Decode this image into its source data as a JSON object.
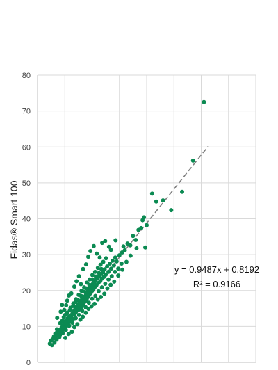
{
  "chart_data": {
    "type": "scatter",
    "title": "",
    "xlabel": "",
    "ylabel": "Fidas® Smart 100",
    "xlim": [
      0,
      80
    ],
    "ylim": [
      0,
      80
    ],
    "y_ticks": [
      0,
      10,
      20,
      30,
      40,
      50,
      60,
      70,
      80
    ],
    "x_grid": [
      0,
      10,
      20,
      30,
      40,
      50,
      60,
      70,
      80
    ],
    "grid": true,
    "point_color": "#0b8a52",
    "trendline_color": "#7f7f7f",
    "trendline": {
      "slope": 0.9487,
      "intercept": 0.8192,
      "x_range": [
        4.5,
        62.5
      ],
      "style": "dashed"
    },
    "annotations": {
      "equation": "y = 0.9487x + 0.8192",
      "r2": "R² = 0.9166"
    },
    "series": [
      {
        "points": [
          [
            4.5,
            5.2
          ],
          [
            5.0,
            6.1
          ],
          [
            5.3,
            4.8
          ],
          [
            5.8,
            6.6
          ],
          [
            6.0,
            7.2
          ],
          [
            6.2,
            5.5
          ],
          [
            6.5,
            6.9
          ],
          [
            6.8,
            7.8
          ],
          [
            7.0,
            6.3
          ],
          [
            7.2,
            8.5
          ],
          [
            7.5,
            7.4
          ],
          [
            7.8,
            8.1
          ],
          [
            8.0,
            9.0
          ],
          [
            8.2,
            7.6
          ],
          [
            8.5,
            8.8
          ],
          [
            8.8,
            9.6
          ],
          [
            9.0,
            8.3
          ],
          [
            9.2,
            10.2
          ],
          [
            9.5,
            9.4
          ],
          [
            9.8,
            10.8
          ],
          [
            10.0,
            9.1
          ],
          [
            10.2,
            11.5
          ],
          [
            10.5,
            10.1
          ],
          [
            10.8,
            11.0
          ],
          [
            11.0,
            12.2
          ],
          [
            11.2,
            10.6
          ],
          [
            11.5,
            11.9
          ],
          [
            11.8,
            12.8
          ],
          [
            12.0,
            11.3
          ],
          [
            12.2,
            13.1
          ],
          [
            12.5,
            12.4
          ],
          [
            12.8,
            13.6
          ],
          [
            13.0,
            12.0
          ],
          [
            13.2,
            14.2
          ],
          [
            13.5,
            13.3
          ],
          [
            13.8,
            14.8
          ],
          [
            14.0,
            13.9
          ],
          [
            14.2,
            15.5
          ],
          [
            14.5,
            14.4
          ],
          [
            14.8,
            15.1
          ],
          [
            15.0,
            16.2
          ],
          [
            15.2,
            14.7
          ],
          [
            15.5,
            15.8
          ],
          [
            15.8,
            16.7
          ],
          [
            16.0,
            15.3
          ],
          [
            16.2,
            17.4
          ],
          [
            16.5,
            16.0
          ],
          [
            16.8,
            17.9
          ],
          [
            17.0,
            16.6
          ],
          [
            17.2,
            18.3
          ],
          [
            17.5,
            17.1
          ],
          [
            17.8,
            18.9
          ],
          [
            18.0,
            17.5
          ],
          [
            18.2,
            19.6
          ],
          [
            18.5,
            18.2
          ],
          [
            18.8,
            20.1
          ],
          [
            19.0,
            18.8
          ],
          [
            19.2,
            20.8
          ],
          [
            19.5,
            19.3
          ],
          [
            19.8,
            21.2
          ],
          [
            20.0,
            19.9
          ],
          [
            20.2,
            21.8
          ],
          [
            20.5,
            20.4
          ],
          [
            20.8,
            22.3
          ],
          [
            21.0,
            21.0
          ],
          [
            21.3,
            22.9
          ],
          [
            21.6,
            21.5
          ],
          [
            22.0,
            23.4
          ],
          [
            22.3,
            22.1
          ],
          [
            22.6,
            24.0
          ],
          [
            23.0,
            22.6
          ],
          [
            23.3,
            24.6
          ],
          [
            23.6,
            23.3
          ],
          [
            24.0,
            25.1
          ],
          [
            24.3,
            23.8
          ],
          [
            24.6,
            25.9
          ],
          [
            25.0,
            24.4
          ],
          [
            25.5,
            26.7
          ],
          [
            26.0,
            25.2
          ],
          [
            26.5,
            27.5
          ],
          [
            27.0,
            26.1
          ],
          [
            27.5,
            28.3
          ],
          [
            28.0,
            27.0
          ],
          [
            28.5,
            29.2
          ],
          [
            29.0,
            28.1
          ],
          [
            30.0,
            29.8
          ],
          [
            31.0,
            30.6
          ],
          [
            31.5,
            32.3
          ],
          [
            32.0,
            31.2
          ],
          [
            33.0,
            33.1
          ],
          [
            34.0,
            32.6
          ],
          [
            35.0,
            35.2
          ],
          [
            36.0,
            34.1
          ],
          [
            37.0,
            36.9
          ],
          [
            38.0,
            37.4
          ],
          [
            38.5,
            39.6
          ],
          [
            39.0,
            40.4
          ],
          [
            40.0,
            38.2
          ],
          [
            7.2,
            12.4
          ],
          [
            8.5,
            14.1
          ],
          [
            9.0,
            16.0
          ],
          [
            9.8,
            14.6
          ],
          [
            10.5,
            15.9
          ],
          [
            10.9,
            17.2
          ],
          [
            11.5,
            18.6
          ],
          [
            12.4,
            19.2
          ],
          [
            13.5,
            21.1
          ],
          [
            14.3,
            22.6
          ],
          [
            15.2,
            24.0
          ],
          [
            15.9,
            21.8
          ],
          [
            16.7,
            26.0
          ],
          [
            17.8,
            27.3
          ],
          [
            18.6,
            29.4
          ],
          [
            19.4,
            31.0
          ],
          [
            20.6,
            32.4
          ],
          [
            21.7,
            30.3
          ],
          [
            22.8,
            29.2
          ],
          [
            23.7,
            33.3
          ],
          [
            24.8,
            33.8
          ],
          [
            26.2,
            32.2
          ],
          [
            26.9,
            31.3
          ],
          [
            28.6,
            34.0
          ],
          [
            10.2,
            6.8
          ],
          [
            11.4,
            7.9
          ],
          [
            12.6,
            8.5
          ],
          [
            13.5,
            9.8
          ],
          [
            14.6,
            10.6
          ],
          [
            15.7,
            11.9
          ],
          [
            16.6,
            12.7
          ],
          [
            17.7,
            13.8
          ],
          [
            18.7,
            14.9
          ],
          [
            19.8,
            15.6
          ],
          [
            20.9,
            16.3
          ],
          [
            22.1,
            17.5
          ],
          [
            23.2,
            18.2
          ],
          [
            24.5,
            19.1
          ],
          [
            25.6,
            20.6
          ],
          [
            26.8,
            21.6
          ],
          [
            28.1,
            22.5
          ],
          [
            29.6,
            24.2
          ],
          [
            31.1,
            25.8
          ],
          [
            32.6,
            28.0
          ],
          [
            34.1,
            29.7
          ],
          [
            36.3,
            31.8
          ],
          [
            39.5,
            32.0
          ],
          [
            6.5,
            8.0
          ],
          [
            7.1,
            9.2
          ],
          [
            8.3,
            10.9
          ],
          [
            9.1,
            11.6
          ],
          [
            10.1,
            13.2
          ],
          [
            11.0,
            13.9
          ],
          [
            12.1,
            15.2
          ],
          [
            13.1,
            16.4
          ],
          [
            14.1,
            17.6
          ],
          [
            15.1,
            18.8
          ],
          [
            16.1,
            19.9
          ],
          [
            17.1,
            20.9
          ],
          [
            18.1,
            22.2
          ],
          [
            19.1,
            23.1
          ],
          [
            20.1,
            24.3
          ],
          [
            21.1,
            25.2
          ],
          [
            22.1,
            26.3
          ],
          [
            23.1,
            27.2
          ],
          [
            24.1,
            28.0
          ],
          [
            25.1,
            29.0
          ],
          [
            8.0,
            7.0
          ],
          [
            9.2,
            8.1
          ],
          [
            10.4,
            9.0
          ],
          [
            11.6,
            10.2
          ],
          [
            12.8,
            11.0
          ],
          [
            14.0,
            12.3
          ],
          [
            15.2,
            13.2
          ],
          [
            16.4,
            14.3
          ],
          [
            17.6,
            15.4
          ],
          [
            18.8,
            16.6
          ],
          [
            20.0,
            17.7
          ],
          [
            21.2,
            18.5
          ],
          [
            22.4,
            19.8
          ],
          [
            23.6,
            20.9
          ],
          [
            24.8,
            21.9
          ],
          [
            26.0,
            23.1
          ],
          [
            27.2,
            24.0
          ],
          [
            28.4,
            25.2
          ],
          [
            29.6,
            26.1
          ],
          [
            30.8,
            27.5
          ],
          [
            9.6,
            12.6
          ],
          [
            10.7,
            13.5
          ],
          [
            11.9,
            14.6
          ],
          [
            13.0,
            15.7
          ],
          [
            13.9,
            16.8
          ],
          [
            14.9,
            17.3
          ],
          [
            16.0,
            18.5
          ],
          [
            17.0,
            19.7
          ],
          [
            18.0,
            20.6
          ],
          [
            19.0,
            21.6
          ],
          [
            20.3,
            23.0
          ],
          [
            21.4,
            23.9
          ],
          [
            22.5,
            24.9
          ],
          [
            23.4,
            26.0
          ],
          [
            42.0,
            47.0
          ],
          [
            43.5,
            44.8
          ],
          [
            46.0,
            45.1
          ],
          [
            49.0,
            42.4
          ],
          [
            53.0,
            47.5
          ],
          [
            57.0,
            56.2
          ],
          [
            61.0,
            72.5
          ]
        ]
      }
    ]
  }
}
